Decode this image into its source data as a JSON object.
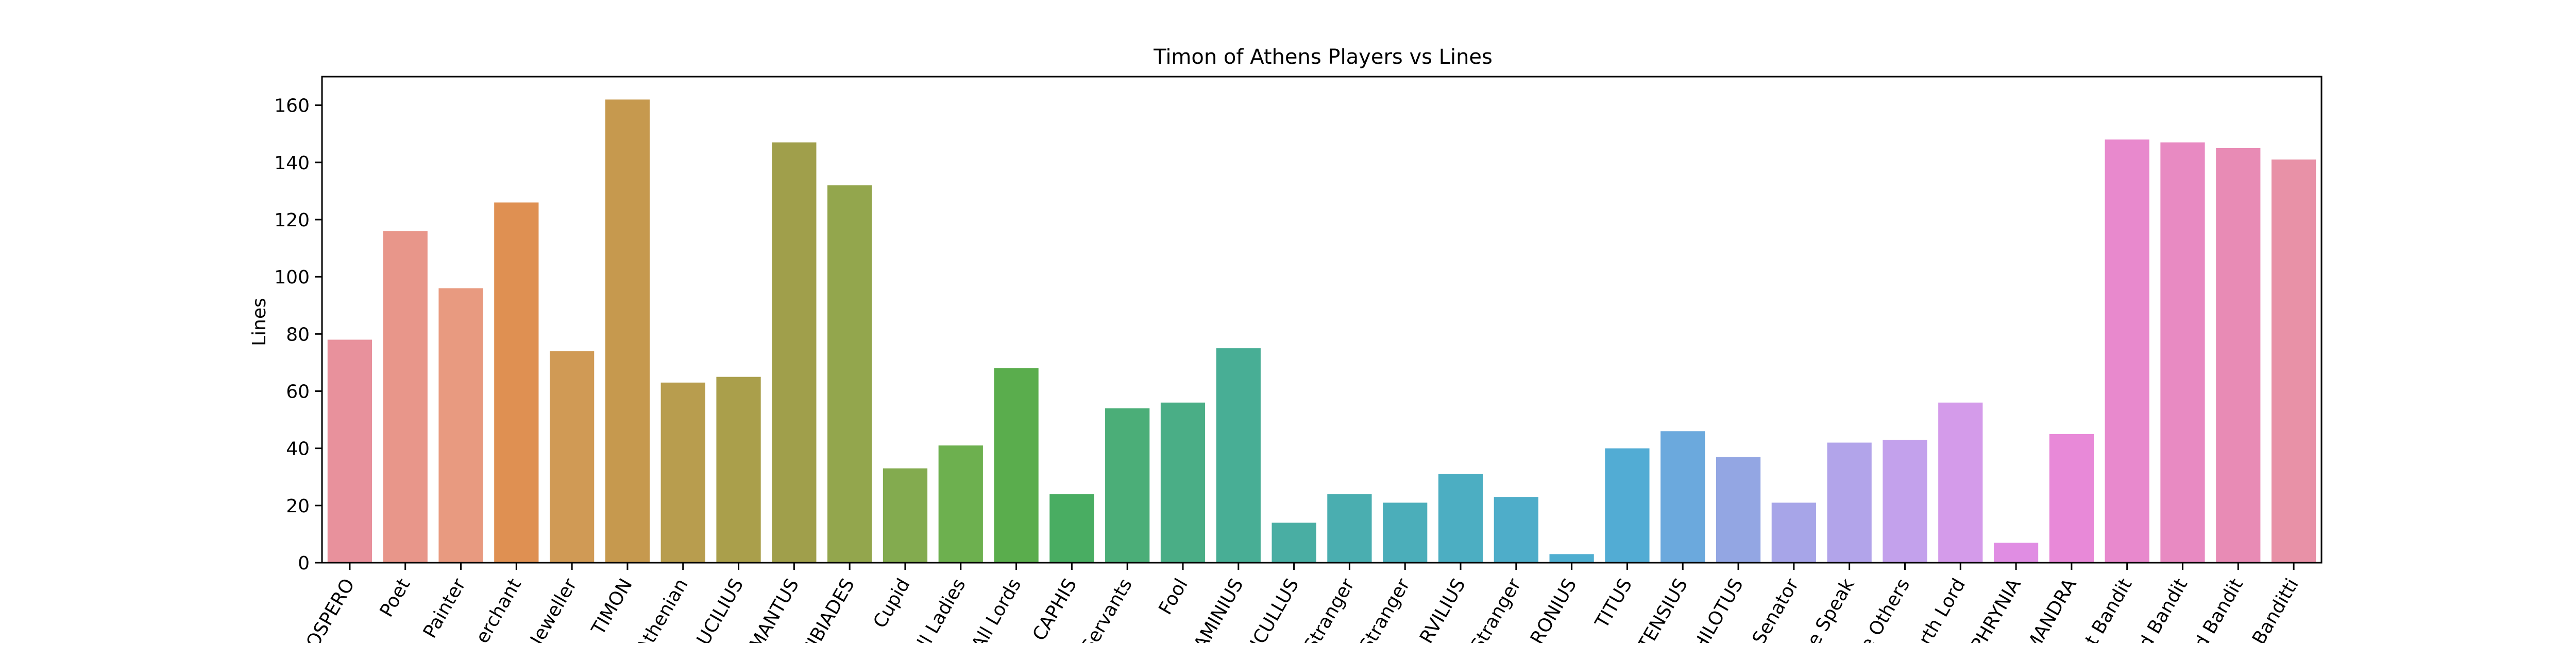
{
  "chart_data": {
    "type": "bar",
    "title": "Timon of Athens Players vs Lines",
    "xlabel": "",
    "ylabel": "Lines",
    "ylim": [
      0,
      170
    ],
    "yticks": [
      0,
      20,
      40,
      60,
      80,
      100,
      120,
      140,
      160
    ],
    "grid": false,
    "legend": "none",
    "categories": [
      "OSPERO",
      "Poet",
      "Painter",
      "erchant",
      "Jeweller",
      "TIMON",
      "Athenian",
      "UCILIUS",
      "MANTUS",
      "CIBIADES",
      "Cupid",
      "ll Ladies",
      "All Lords",
      "CAPHIS",
      "Servants",
      "Fool",
      "AMINIUS",
      "ICULLUS",
      "Stranger",
      "Stranger",
      "RVILIUS",
      "Stranger",
      "RONIUS",
      "TITUS",
      "TENSIUS",
      "HILOTUS",
      "Senator",
      "e Speak",
      "e Others",
      "rth Lord",
      "PHRYNIA",
      "MANDRA",
      "t Bandit",
      "d Bandit",
      "d Bandit",
      "Banditti"
    ],
    "values": [
      78,
      116,
      96,
      126,
      74,
      162,
      63,
      65,
      147,
      132,
      33,
      41,
      68,
      24,
      54,
      56,
      75,
      14,
      24,
      21,
      31,
      23,
      3,
      40,
      46,
      37,
      21,
      42,
      43,
      56,
      7,
      45,
      148,
      147,
      145,
      141
    ],
    "colors": [
      "#e8919c",
      "#e8968a",
      "#e89a80",
      "#df9052",
      "#d09a55",
      "#c6994e",
      "#b89d4e",
      "#aa9f4b",
      "#a09f4b",
      "#93a64d",
      "#83ab4f",
      "#6db04f",
      "#5aad4d",
      "#49ad62",
      "#4bae78",
      "#4aae86",
      "#48ae95",
      "#49aea3",
      "#4aaeb0",
      "#4baeba",
      "#4caec2",
      "#4eadc9",
      "#4faed0",
      "#52acd4",
      "#6ba9dd",
      "#93a6e3",
      "#a7a5e8",
      "#b2a4ea",
      "#c3a1ec",
      "#d49bea",
      "#e08de3",
      "#e889d8",
      "#e889cd",
      "#e88ac2",
      "#e88bb5",
      "#e891a7"
    ]
  }
}
